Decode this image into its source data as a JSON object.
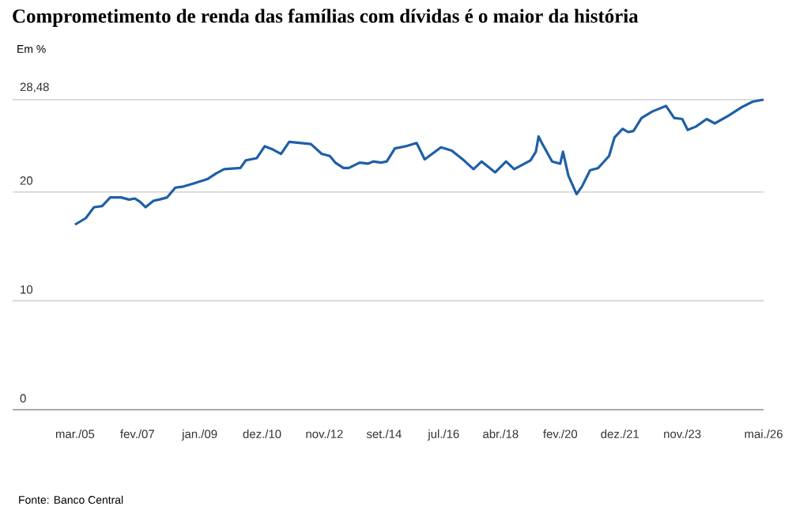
{
  "chart_data": {
    "type": "line",
    "title": "Comprometimento de renda das famílias com dívidas é o maior da história",
    "ylabel": "Em %",
    "annotations": [
      "Fonte: Banco Central"
    ],
    "x": [
      "2005-03",
      "2005-07",
      "2005-10",
      "2006-01",
      "2006-04",
      "2006-08",
      "2006-11",
      "2007-01",
      "2007-03",
      "2007-05",
      "2007-08",
      "2007-10",
      "2008-01",
      "2008-04",
      "2008-07",
      "2008-11",
      "2009-04",
      "2009-07",
      "2009-10",
      "2010-04",
      "2010-06",
      "2010-10",
      "2011-01",
      "2011-04",
      "2011-07",
      "2011-10",
      "2012-02",
      "2012-06",
      "2012-10",
      "2013-01",
      "2013-03",
      "2013-06",
      "2013-08",
      "2013-12",
      "2014-03",
      "2014-05",
      "2014-08",
      "2014-10",
      "2015-01",
      "2015-05",
      "2015-09",
      "2015-12",
      "2016-06",
      "2016-10",
      "2017-02",
      "2017-06",
      "2017-09",
      "2018-02",
      "2018-06",
      "2018-09",
      "2019-03",
      "2019-05",
      "2019-06",
      "2019-07",
      "2019-11",
      "2020-02",
      "2020-03",
      "2020-05",
      "2020-08",
      "2020-10",
      "2021-01",
      "2021-04",
      "2021-08",
      "2021-10",
      "2022-01",
      "2022-03",
      "2022-05",
      "2022-08",
      "2022-12",
      "2023-05",
      "2023-08",
      "2023-11",
      "2024-01",
      "2024-04",
      "2024-08",
      "2024-11",
      "2025-04",
      "2025-09",
      "2026-01",
      "2026-05"
    ],
    "series": [
      {
        "color": "#1f5fa6",
        "values": [
          17.0,
          17.6,
          18.6,
          18.7,
          19.5,
          19.5,
          19.3,
          19.4,
          19.1,
          18.6,
          19.2,
          19.3,
          19.5,
          20.4,
          20.5,
          20.8,
          21.2,
          21.7,
          22.1,
          22.2,
          22.9,
          23.1,
          24.2,
          23.9,
          23.5,
          24.6,
          24.5,
          24.4,
          23.5,
          23.3,
          22.7,
          22.2,
          22.2,
          22.7,
          22.6,
          22.8,
          22.7,
          22.8,
          24.0,
          24.2,
          24.5,
          23.0,
          24.1,
          23.8,
          23.0,
          22.1,
          22.8,
          21.8,
          22.8,
          22.1,
          22.9,
          23.7,
          25.1,
          24.6,
          22.8,
          22.6,
          23.7,
          21.5,
          19.8,
          20.5,
          22.0,
          22.2,
          23.3,
          25.0,
          25.8,
          25.5,
          25.6,
          26.8,
          27.4,
          27.9,
          26.8,
          26.7,
          25.7,
          26.0,
          26.7,
          26.3,
          27.0,
          27.8,
          28.3,
          28.48
        ]
      }
    ],
    "xlim": [
      "2003-04",
      "2026-05"
    ],
    "xticks": [
      {
        "value": "2005-03",
        "label": "mar./05"
      },
      {
        "value": "2007-02",
        "label": "fev./07"
      },
      {
        "value": "2009-01",
        "label": "jan./09"
      },
      {
        "value": "2010-12",
        "label": "dez./10"
      },
      {
        "value": "2012-11",
        "label": "nov./12"
      },
      {
        "value": "2014-09",
        "label": "set./14"
      },
      {
        "value": "2016-07",
        "label": "jul./16"
      },
      {
        "value": "2018-04",
        "label": "abr./18"
      },
      {
        "value": "2020-02",
        "label": "fev./20"
      },
      {
        "value": "2021-12",
        "label": "dez./21"
      },
      {
        "value": "2023-11",
        "label": "nov./23"
      },
      {
        "value": "2026-05",
        "label": "mai./26"
      }
    ],
    "ylim": [
      0,
      28.48
    ],
    "yticks": [
      0,
      10,
      20,
      {
        "value": 28.48,
        "label": "28,48"
      }
    ],
    "grid": "y",
    "marker": "none",
    "line_style": "solid"
  }
}
